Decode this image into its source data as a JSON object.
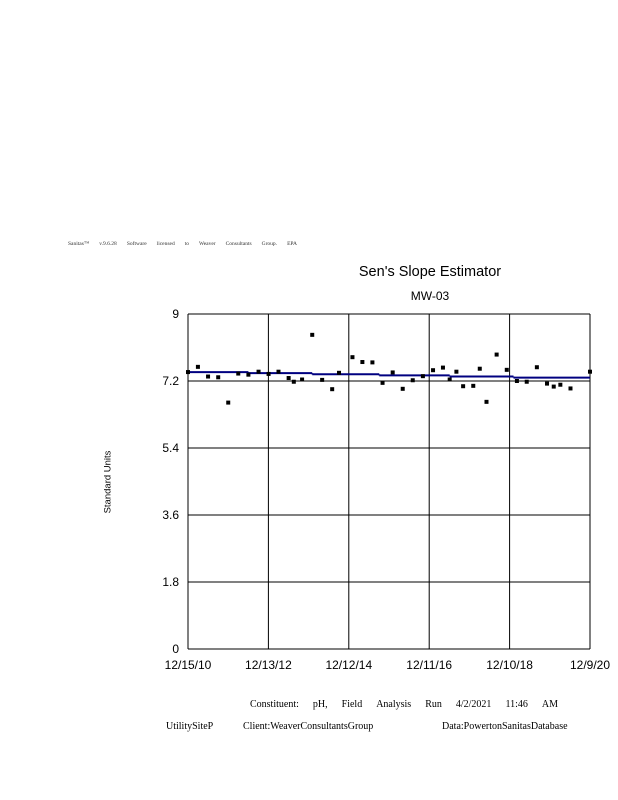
{
  "license_line": [
    "Sanitas™",
    "v.9.6.28",
    "Software",
    "licensed",
    "to",
    "Weaver",
    "Consultants",
    "Group.",
    "EPA"
  ],
  "footer": {
    "constituent_words": [
      "Constituent:",
      "pH,",
      "Field",
      "Analysis",
      "Run",
      "4/2/2021",
      "11:46",
      "AM"
    ],
    "facility": "UtilitySiteP",
    "client": "Client:WeaverConsultantsGroup",
    "data": "Data:PowertonSanitasDatabase"
  },
  "chart_data": {
    "type": "scatter",
    "title": "Sen's Slope Estimator",
    "subtitle": "MW-03",
    "ylabel": "Standard Units",
    "xlabel": "",
    "ylim": [
      0,
      9
    ],
    "yticks": [
      "9",
      "7.2",
      "5.4",
      "3.6",
      "1.8",
      "0"
    ],
    "xticks": [
      "12/15/10",
      "12/13/12",
      "12/12/14",
      "12/11/16",
      "12/10/18",
      "12/9/20"
    ],
    "grid": true,
    "points": [
      {
        "x": "2010-12-15",
        "y": 7.44
      },
      {
        "x": "2011-03-15",
        "y": 7.58
      },
      {
        "x": "2011-06-15",
        "y": 7.32
      },
      {
        "x": "2011-09-15",
        "y": 7.3
      },
      {
        "x": "2011-12-15",
        "y": 6.62
      },
      {
        "x": "2012-03-15",
        "y": 7.4
      },
      {
        "x": "2012-06-15",
        "y": 7.37
      },
      {
        "x": "2012-09-15",
        "y": 7.45
      },
      {
        "x": "2012-12-15",
        "y": 7.39
      },
      {
        "x": "2013-03-15",
        "y": 7.45
      },
      {
        "x": "2013-06-15",
        "y": 7.28
      },
      {
        "x": "2013-08-01",
        "y": 7.18
      },
      {
        "x": "2013-10-15",
        "y": 7.24
      },
      {
        "x": "2014-01-15",
        "y": 8.44
      },
      {
        "x": "2014-04-15",
        "y": 7.23
      },
      {
        "x": "2014-07-15",
        "y": 6.98
      },
      {
        "x": "2014-09-15",
        "y": 7.42
      },
      {
        "x": "2015-01-15",
        "y": 7.84
      },
      {
        "x": "2015-04-15",
        "y": 7.71
      },
      {
        "x": "2015-07-15",
        "y": 7.7
      },
      {
        "x": "2015-10-15",
        "y": 7.15
      },
      {
        "x": "2016-01-15",
        "y": 7.43
      },
      {
        "x": "2016-04-15",
        "y": 6.99
      },
      {
        "x": "2016-07-15",
        "y": 7.22
      },
      {
        "x": "2016-10-15",
        "y": 7.33
      },
      {
        "x": "2017-01-15",
        "y": 7.49
      },
      {
        "x": "2017-04-15",
        "y": 7.56
      },
      {
        "x": "2017-06-15",
        "y": 7.24
      },
      {
        "x": "2017-08-15",
        "y": 7.45
      },
      {
        "x": "2017-10-15",
        "y": 7.06
      },
      {
        "x": "2018-01-15",
        "y": 7.07
      },
      {
        "x": "2018-03-15",
        "y": 7.53
      },
      {
        "x": "2018-05-15",
        "y": 6.64
      },
      {
        "x": "2018-08-15",
        "y": 7.91
      },
      {
        "x": "2018-11-15",
        "y": 7.5
      },
      {
        "x": "2019-02-15",
        "y": 7.2
      },
      {
        "x": "2019-05-15",
        "y": 7.18
      },
      {
        "x": "2019-08-15",
        "y": 7.57
      },
      {
        "x": "2019-11-15",
        "y": 7.13
      },
      {
        "x": "2020-01-15",
        "y": 7.05
      },
      {
        "x": "2020-03-15",
        "y": 7.1
      },
      {
        "x": "2020-06-15",
        "y": 7.0
      },
      {
        "x": "2020-12-09",
        "y": 7.45
      }
    ],
    "trend_segments": [
      {
        "x": [
          "2010-12-15",
          "2012-06-15"
        ],
        "y": 7.44
      },
      {
        "x": [
          "2012-06-15",
          "2014-01-15"
        ],
        "y": 7.41
      },
      {
        "x": [
          "2014-01-15",
          "2015-09-15"
        ],
        "y": 7.38
      },
      {
        "x": [
          "2015-09-15",
          "2017-06-15"
        ],
        "y": 7.35
      },
      {
        "x": [
          "2017-06-15",
          "2019-01-15"
        ],
        "y": 7.32
      },
      {
        "x": [
          "2019-01-15",
          "2020-12-09"
        ],
        "y": 7.29
      }
    ],
    "colors": {
      "trend": "#000080",
      "points": "#000000",
      "grid": "#000000"
    }
  }
}
